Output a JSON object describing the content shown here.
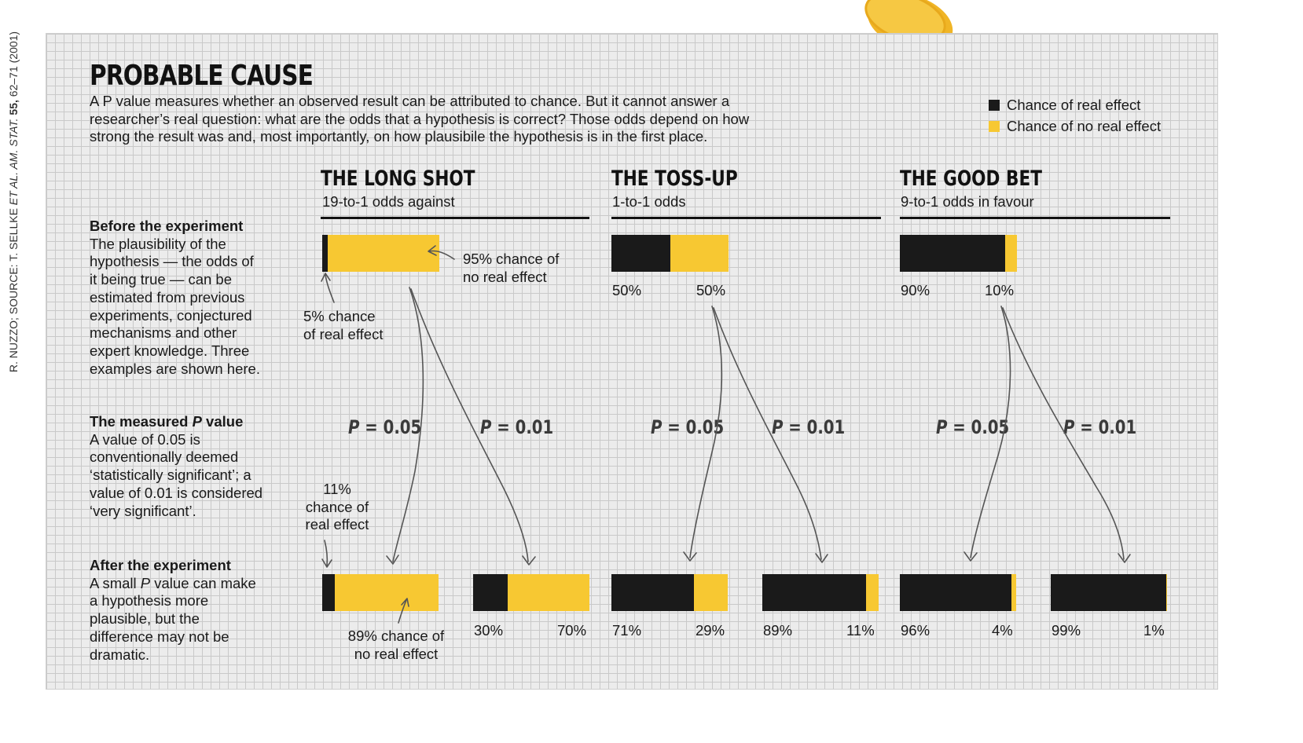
{
  "credit": {
    "prefix": "R. NUZZO; SOURCE: T. SELLKE ",
    "etal": "ET AL. AM. STAT.",
    "vol": " 55,",
    "pages": " 62–71 (2001)"
  },
  "title": "PROBABLE CAUSE",
  "intro": {
    "l1": "A P value measures whether an observed result can be attributed to chance. But it cannot answer a",
    "l2": "researcher’s real question: what are the odds that a hypothesis is correct? Those odds depend on how",
    "l3": "strong the result was and, most importantly, on how plausibile the hypothesis is in the first place."
  },
  "legend": {
    "real": "Chance of real effect",
    "noreal": "Chance of no real effect"
  },
  "colors": {
    "real": "#1a1a1a",
    "noreal": "#f7c832",
    "panel": "#ececec",
    "grid": "#c9c9c9"
  },
  "sections": {
    "before": {
      "head": "Before the experiment",
      "l1": "The plausibility of the",
      "l2": "hypothesis — the odds of",
      "l3": "it being true — can be",
      "l4": "estimated from previous",
      "l5": "experiments, conjectured",
      "l6": "mechanisms and other",
      "l7": "expert knowledge. Three",
      "l8": "examples are shown here."
    },
    "pvalue": {
      "head_a": "The measured ",
      "head_p": "P",
      "head_b": " value",
      "l1": "A value of 0.05 is",
      "l2": "conventionally deemed",
      "l3": "‘statistically significant’; a",
      "l4": "value of 0.01 is considered",
      "l5": "‘very significant’."
    },
    "after": {
      "head": "After the experiment",
      "l1a": "A small ",
      "l1p": "P",
      "l1b": " value can make",
      "l2": "a hypothesis more",
      "l3": "plausible, but the",
      "l4": "difference may not be",
      "l5": "dramatic."
    }
  },
  "annotations": {
    "a1": {
      "l1": "95% chance of",
      "l2": "no real effect"
    },
    "a2": {
      "l1": "5% chance",
      "l2": "of real effect"
    },
    "a3": {
      "l1": "11%",
      "l2": "chance of",
      "l3": "real effect"
    },
    "a4": {
      "l1": "89% chance of",
      "l2": "no real effect"
    }
  },
  "chart_data": {
    "type": "bar",
    "series_names": [
      "Chance of real effect",
      "Chance of no real effect"
    ],
    "scenarios": [
      {
        "name": "THE LONG SHOT",
        "subtitle": "19-to-1 odds against",
        "before": {
          "real": 5,
          "no_real": 95
        },
        "p005": {
          "label_p": "P",
          "label_v": " = 0.05",
          "real": 11,
          "no_real": 89
        },
        "p001": {
          "label_p": "P",
          "label_v": " = 0.01",
          "real": 30,
          "no_real": 70,
          "real_label": "30%",
          "no_real_label": "70%"
        }
      },
      {
        "name": "THE TOSS-UP",
        "subtitle": "1-to-1 odds",
        "before": {
          "real": 50,
          "no_real": 50,
          "real_label": "50%",
          "no_real_label": "50%"
        },
        "p005": {
          "label_p": "P",
          "label_v": " = 0.05",
          "real": 71,
          "no_real": 29,
          "real_label": "71%",
          "no_real_label": "29%"
        },
        "p001": {
          "label_p": "P",
          "label_v": " = 0.01",
          "real": 89,
          "no_real": 11,
          "real_label": "89%",
          "no_real_label": "11%"
        }
      },
      {
        "name": "THE GOOD BET",
        "subtitle": "9-to-1 odds in favour",
        "before": {
          "real": 90,
          "no_real": 10,
          "real_label": "90%",
          "no_real_label": "10%"
        },
        "p005": {
          "label_p": "P",
          "label_v": " = 0.05",
          "real": 96,
          "no_real": 4,
          "real_label": "96%",
          "no_real_label": "4%"
        },
        "p001": {
          "label_p": "P",
          "label_v": " = 0.01",
          "real": 99,
          "no_real": 1,
          "real_label": "99%",
          "no_real_label": "1%"
        }
      }
    ]
  }
}
